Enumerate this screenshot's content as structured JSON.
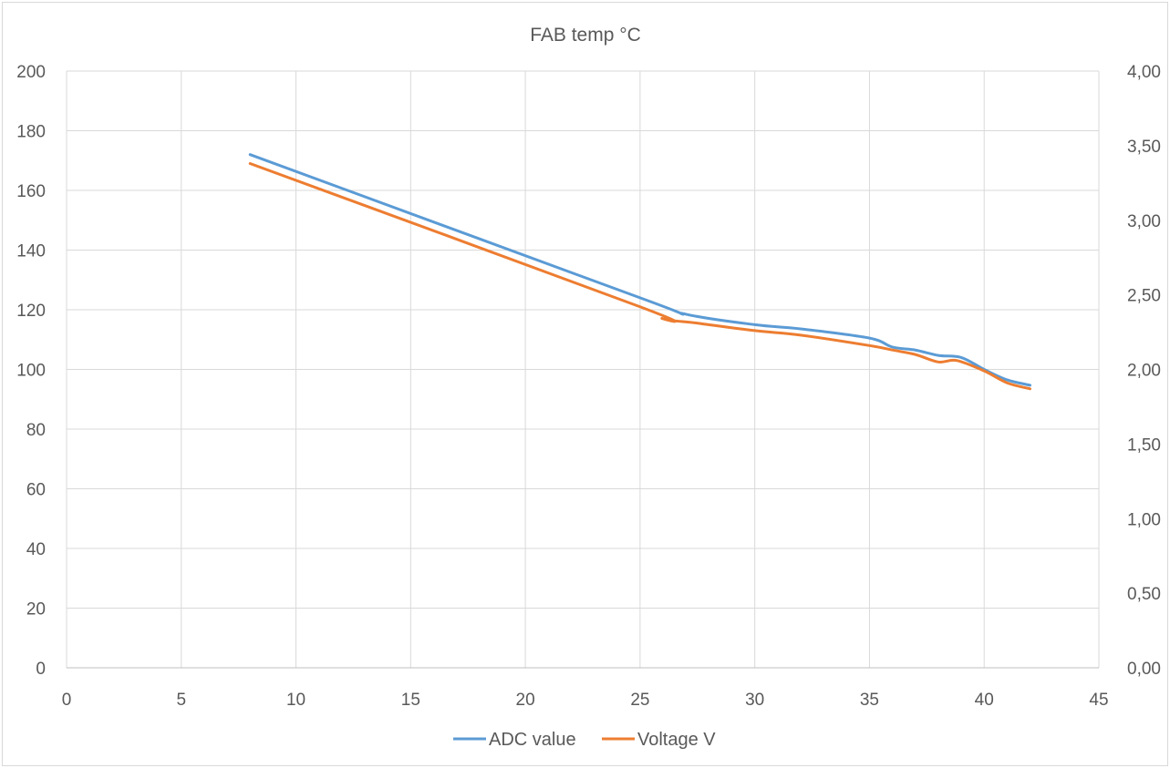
{
  "chart_data": {
    "type": "line",
    "title": "FAB temp °C",
    "xlim": [
      0,
      45
    ],
    "x_ticks": [
      "0",
      "5",
      "10",
      "15",
      "20",
      "25",
      "30",
      "35",
      "40",
      "45"
    ],
    "y_left_lim": [
      0,
      200
    ],
    "y_left_ticks": [
      "0",
      "20",
      "40",
      "60",
      "80",
      "100",
      "120",
      "140",
      "160",
      "180",
      "200"
    ],
    "y_right_lim": [
      0,
      4
    ],
    "y_right_ticks": [
      "0,00",
      "0,50",
      "1,00",
      "1,50",
      "2,00",
      "2,50",
      "3,00",
      "3,50",
      "4,00"
    ],
    "grid": true,
    "legend": "bottom",
    "series": [
      {
        "name": "ADC value",
        "axis": "left",
        "color": "#5b9bd5",
        "x": [
          8,
          25,
          27,
          30,
          32,
          35,
          36,
          37,
          38,
          39,
          40,
          41,
          42
        ],
        "y": [
          172,
          124,
          118.5,
          115,
          113.6,
          110.5,
          107.5,
          106.5,
          104.7,
          104,
          100,
          96.5,
          94.7
        ]
      },
      {
        "name": "Voltage V",
        "axis": "right",
        "color": "#ed7d31",
        "x": [
          8,
          25,
          26,
          27.5,
          30,
          32,
          35,
          36,
          37,
          38,
          38.8,
          40,
          41,
          42
        ],
        "y": [
          3.38,
          2.42,
          2.34,
          2.31,
          2.26,
          2.23,
          2.16,
          2.13,
          2.1,
          2.05,
          2.06,
          1.99,
          1.91,
          1.87
        ]
      }
    ]
  }
}
